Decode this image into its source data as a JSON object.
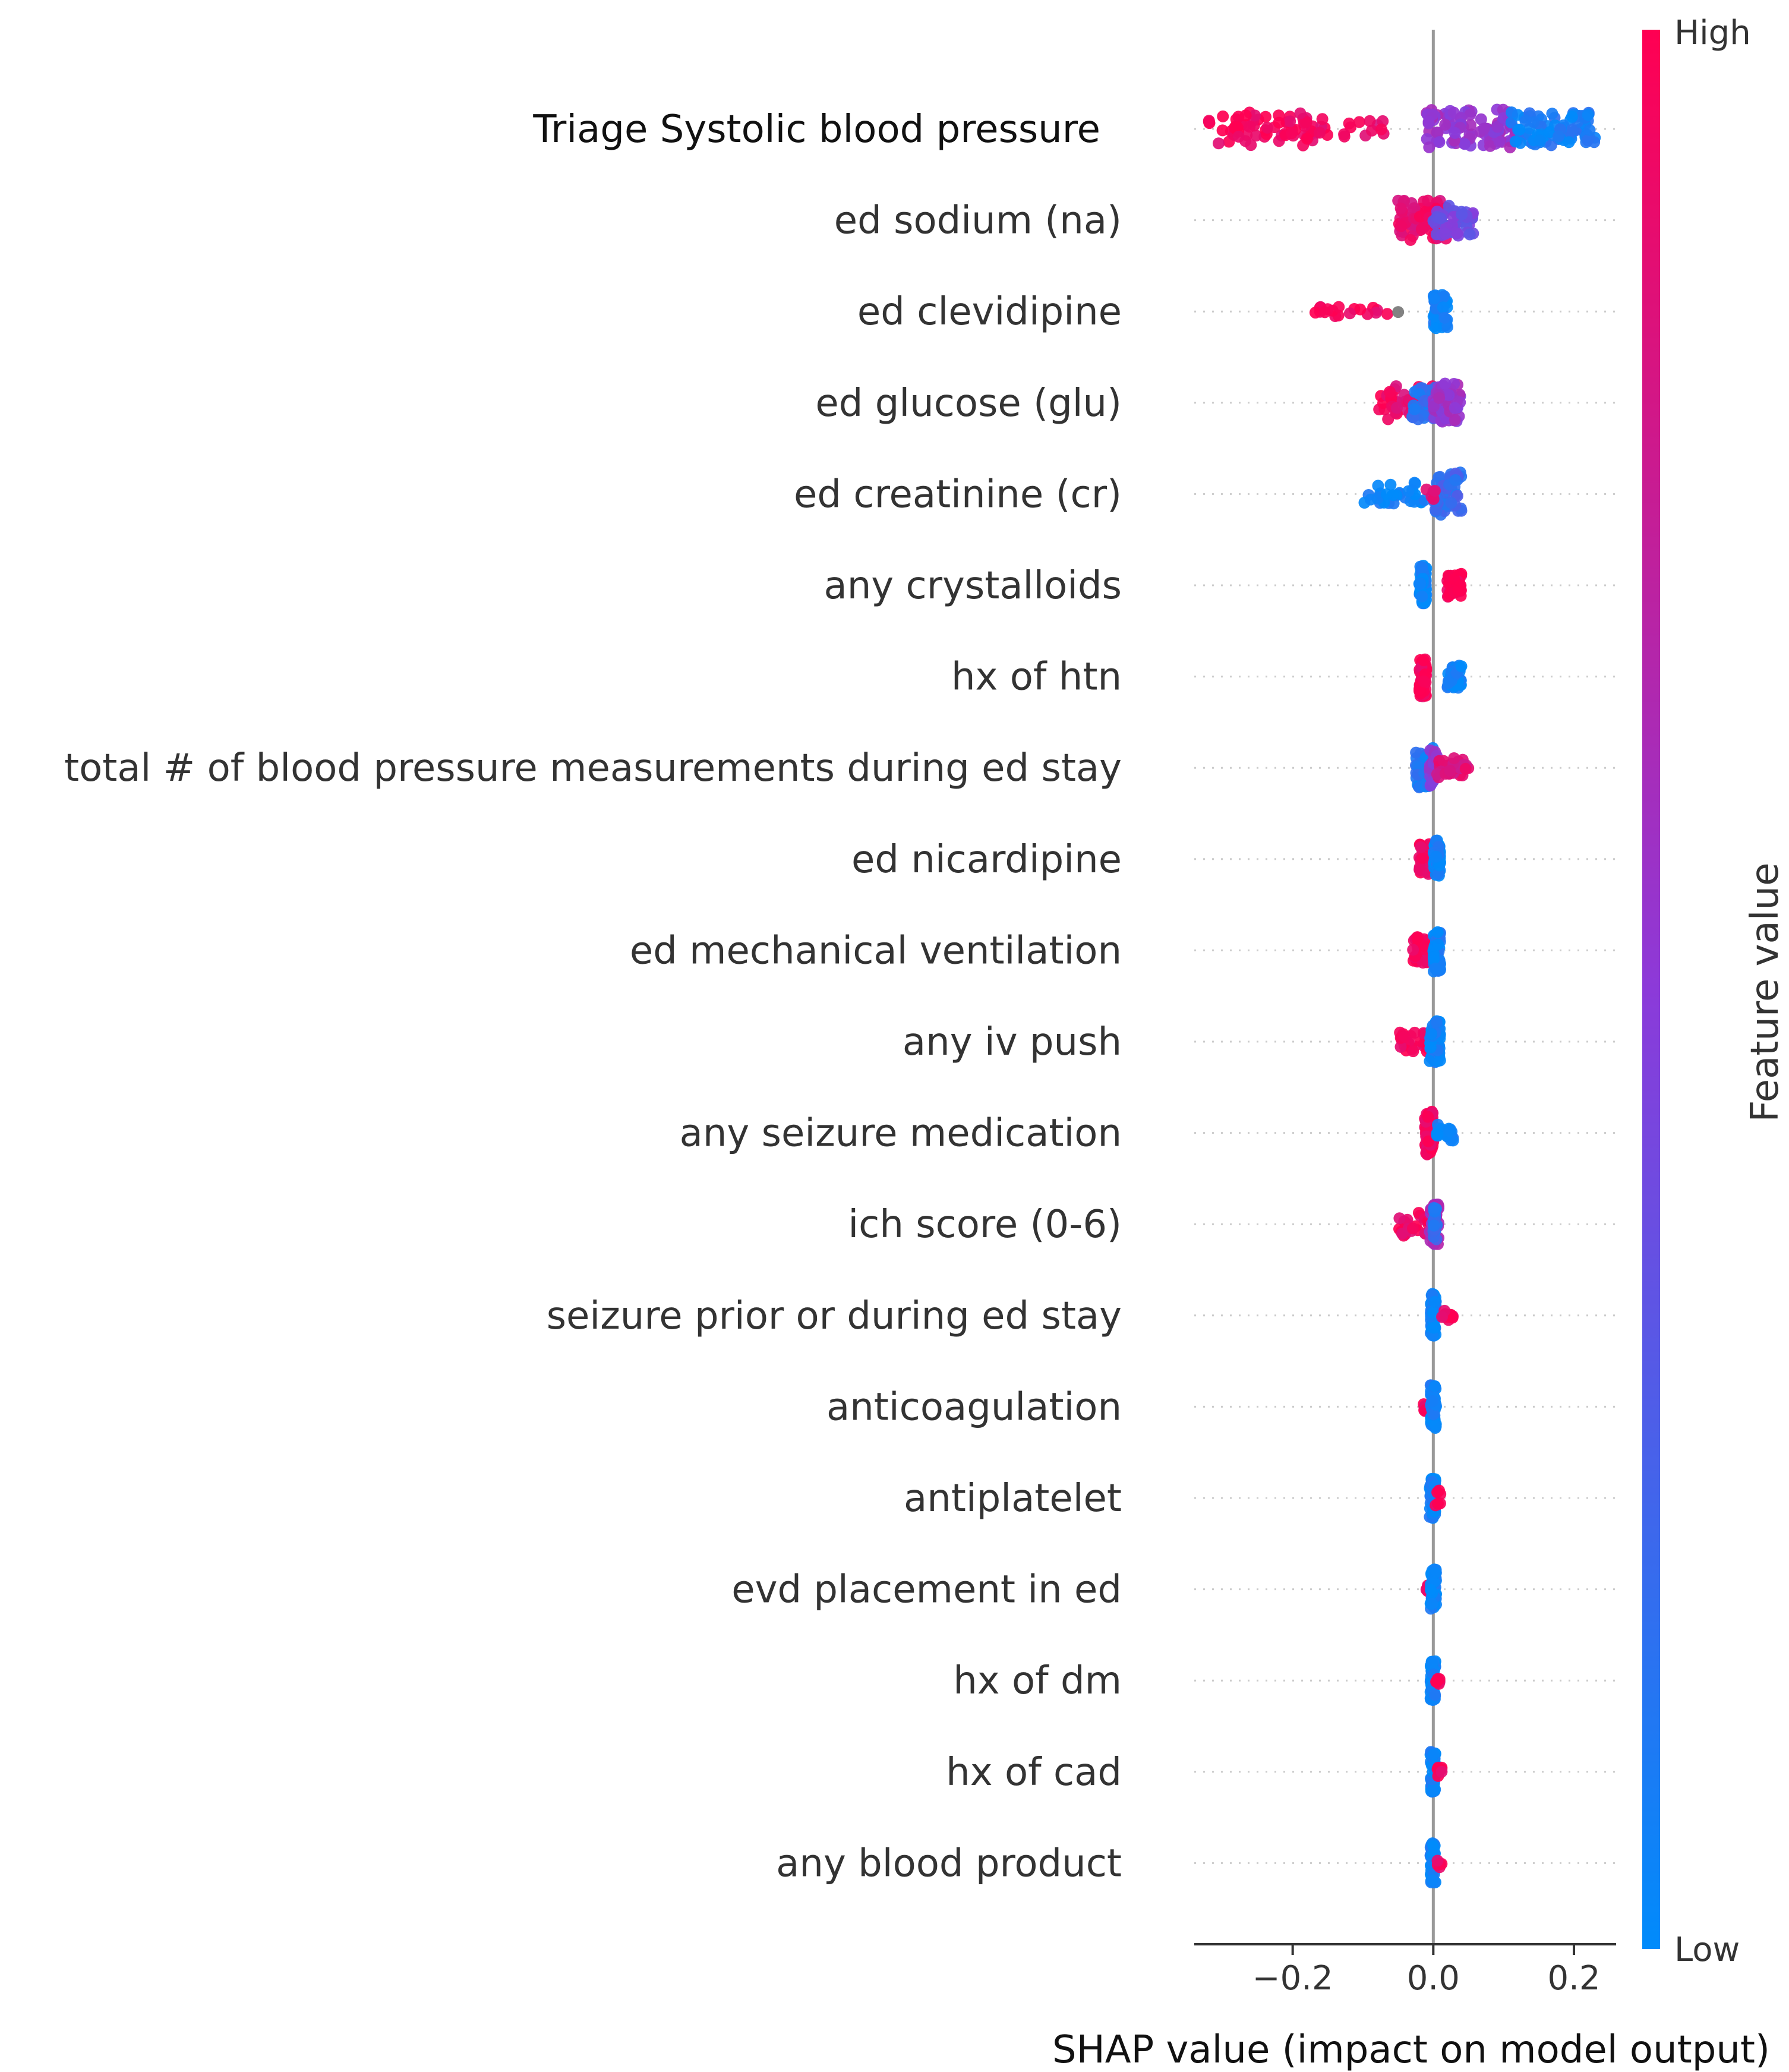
{
  "chart_data": {
    "type": "scatter",
    "subtype": "shap-beeswarm",
    "title": "",
    "xlabel": "SHAP value (impact on model output)",
    "xlim": [
      -0.34,
      0.26
    ],
    "xticks": [
      -0.2,
      0.0,
      0.2
    ],
    "xtick_labels": [
      "−0.2",
      "0.0",
      "0.2"
    ],
    "colorbar": {
      "label": "Feature value",
      "high_label": "High",
      "low_label": "Low",
      "high_color": "#ff0052",
      "low_color": "#008bfb"
    },
    "features": [
      {
        "name": "Triage Systolic blood pressure",
        "clusters": [
          {
            "from": -0.32,
            "to": -0.15,
            "v": 0.95,
            "n": 70,
            "h": 1.0
          },
          {
            "from": -0.15,
            "to": -0.07,
            "v": 0.9,
            "n": 12,
            "h": 0.5
          },
          {
            "from": -0.01,
            "to": 0.12,
            "v": 0.55,
            "n": 95,
            "h": 1.2
          },
          {
            "from": 0.11,
            "to": 0.23,
            "v": 0.08,
            "n": 80,
            "h": 1.0
          }
        ]
      },
      {
        "name": "ed sodium (na)",
        "clusters": [
          {
            "from": -0.05,
            "to": 0.02,
            "v": 0.9,
            "n": 70,
            "h": 1.2
          },
          {
            "from": 0.0,
            "to": 0.06,
            "v": 0.4,
            "n": 50,
            "h": 1.0
          }
        ]
      },
      {
        "name": "ed clevidipine",
        "clusters": [
          {
            "from": -0.17,
            "to": -0.06,
            "v": 0.97,
            "n": 18,
            "h": 0.3
          },
          {
            "from": -0.05,
            "to": -0.05,
            "v": 0.5,
            "grey": true,
            "n": 1,
            "h": 0.1
          },
          {
            "from": 0.0,
            "to": 0.02,
            "v": 0.03,
            "n": 60,
            "h": 1.0
          }
        ]
      },
      {
        "name": "ed glucose (glu)",
        "clusters": [
          {
            "from": -0.08,
            "to": 0.0,
            "v": 0.92,
            "n": 45,
            "h": 1.0
          },
          {
            "from": -0.03,
            "to": 0.02,
            "v": 0.15,
            "n": 50,
            "h": 1.0
          },
          {
            "from": 0.0,
            "to": 0.04,
            "v": 0.55,
            "n": 50,
            "h": 1.2
          }
        ]
      },
      {
        "name": "ed creatinine (cr)",
        "clusters": [
          {
            "from": -0.1,
            "to": -0.01,
            "v": 0.05,
            "n": 30,
            "h": 0.7
          },
          {
            "from": 0.0,
            "to": 0.04,
            "v": 0.2,
            "n": 60,
            "h": 1.3
          },
          {
            "from": -0.01,
            "to": 0.01,
            "v": 0.9,
            "n": 5,
            "h": 0.3
          }
        ]
      },
      {
        "name": "any crystalloids",
        "clusters": [
          {
            "from": -0.02,
            "to": -0.01,
            "v": 0.02,
            "n": 55,
            "h": 1.2
          },
          {
            "from": 0.02,
            "to": 0.04,
            "v": 0.97,
            "n": 40,
            "h": 0.7
          }
        ]
      },
      {
        "name": "hx of htn",
        "clusters": [
          {
            "from": -0.02,
            "to": -0.01,
            "v": 0.97,
            "n": 55,
            "h": 1.2
          },
          {
            "from": 0.02,
            "to": 0.04,
            "v": 0.03,
            "n": 40,
            "h": 0.7
          }
        ]
      },
      {
        "name": "total # of blood pressure measurements during ed stay",
        "clusters": [
          {
            "from": -0.025,
            "to": 0.0,
            "v": 0.1,
            "n": 50,
            "h": 1.2
          },
          {
            "from": -0.005,
            "to": 0.005,
            "v": 0.55,
            "n": 25,
            "h": 1.1
          },
          {
            "from": 0.005,
            "to": 0.05,
            "v": 0.85,
            "n": 30,
            "h": 0.6
          }
        ]
      },
      {
        "name": "ed nicardipine",
        "clusters": [
          {
            "from": -0.02,
            "to": -0.005,
            "v": 0.95,
            "n": 35,
            "h": 0.9
          },
          {
            "from": 0.0,
            "to": 0.01,
            "v": 0.05,
            "n": 50,
            "h": 1.2
          }
        ]
      },
      {
        "name": "ed mechanical ventilation",
        "clusters": [
          {
            "from": -0.03,
            "to": -0.005,
            "v": 0.95,
            "n": 40,
            "h": 0.8
          },
          {
            "from": 0.0,
            "to": 0.01,
            "v": 0.05,
            "n": 55,
            "h": 1.3
          }
        ]
      },
      {
        "name": "any iv push",
        "clusters": [
          {
            "from": -0.05,
            "to": -0.005,
            "v": 0.95,
            "n": 30,
            "h": 0.6
          },
          {
            "from": -0.005,
            "to": 0.01,
            "v": 0.05,
            "n": 60,
            "h": 1.3
          }
        ]
      },
      {
        "name": "any seizure medication",
        "clusters": [
          {
            "from": -0.012,
            "to": 0.0,
            "v": 0.97,
            "n": 60,
            "h": 1.3
          },
          {
            "from": 0.005,
            "to": 0.03,
            "v": 0.05,
            "n": 20,
            "h": 0.5
          }
        ]
      },
      {
        "name": "ich score (0-6)",
        "clusters": [
          {
            "from": -0.05,
            "to": -0.005,
            "v": 0.95,
            "n": 30,
            "h": 0.7
          },
          {
            "from": -0.005,
            "to": 0.008,
            "v": 0.6,
            "n": 45,
            "h": 1.2
          },
          {
            "from": 0.0,
            "to": 0.005,
            "v": 0.15,
            "n": 20,
            "h": 1.0
          }
        ]
      },
      {
        "name": "seizure prior or during ed stay",
        "clusters": [
          {
            "from": -0.004,
            "to": 0.004,
            "v": 0.04,
            "n": 60,
            "h": 1.3
          },
          {
            "from": 0.01,
            "to": 0.028,
            "v": 0.97,
            "n": 12,
            "h": 0.3
          }
        ]
      },
      {
        "name": "anticoagulation",
        "clusters": [
          {
            "from": -0.015,
            "to": -0.01,
            "v": 0.95,
            "n": 6,
            "h": 0.3
          },
          {
            "from": -0.004,
            "to": 0.004,
            "v": 0.04,
            "n": 60,
            "h": 1.3
          }
        ]
      },
      {
        "name": "antiplatelet",
        "clusters": [
          {
            "from": -0.005,
            "to": 0.003,
            "v": 0.04,
            "n": 55,
            "h": 1.2
          },
          {
            "from": 0.003,
            "to": 0.01,
            "v": 0.95,
            "n": 8,
            "h": 0.5
          }
        ]
      },
      {
        "name": "evd placement in ed",
        "clusters": [
          {
            "from": -0.01,
            "to": -0.006,
            "v": 0.95,
            "n": 5,
            "h": 0.3
          },
          {
            "from": -0.004,
            "to": 0.004,
            "v": 0.04,
            "n": 55,
            "h": 1.2
          }
        ]
      },
      {
        "name": "hx of dm",
        "clusters": [
          {
            "from": -0.004,
            "to": 0.003,
            "v": 0.04,
            "n": 55,
            "h": 1.2
          },
          {
            "from": 0.004,
            "to": 0.01,
            "v": 0.95,
            "n": 6,
            "h": 0.3
          }
        ]
      },
      {
        "name": "hx of cad",
        "clusters": [
          {
            "from": -0.004,
            "to": 0.003,
            "v": 0.04,
            "n": 55,
            "h": 1.2
          },
          {
            "from": 0.006,
            "to": 0.012,
            "v": 0.95,
            "n": 6,
            "h": 0.3
          }
        ]
      },
      {
        "name": "any blood product",
        "clusters": [
          {
            "from": -0.004,
            "to": 0.003,
            "v": 0.04,
            "n": 55,
            "h": 1.2
          },
          {
            "from": 0.006,
            "to": 0.014,
            "v": 0.95,
            "n": 6,
            "h": 0.3
          }
        ]
      }
    ]
  }
}
